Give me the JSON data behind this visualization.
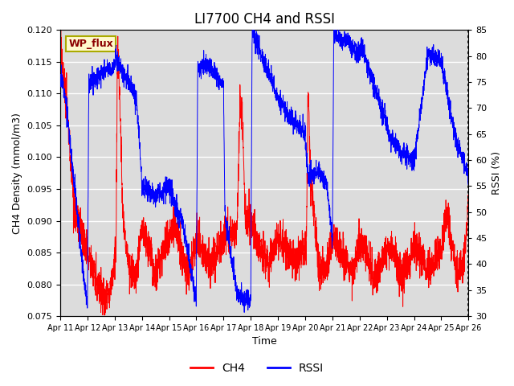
{
  "title": "LI7700 CH4 and RSSI",
  "xlabel": "Time",
  "ylabel_left": "CH4 Density (mmol/m3)",
  "ylabel_right": "RSSI (%)",
  "annotation": "WP_flux",
  "ylim_left": [
    0.075,
    0.12
  ],
  "ylim_right": [
    30,
    85
  ],
  "yticks_left": [
    0.075,
    0.08,
    0.085,
    0.09,
    0.095,
    0.1,
    0.105,
    0.11,
    0.115,
    0.12
  ],
  "yticks_right": [
    30,
    35,
    40,
    45,
    50,
    55,
    60,
    65,
    70,
    75,
    80,
    85
  ],
  "ch4_color": "#FF0000",
  "rssi_color": "#0000FF",
  "background_color": "#DCDCDC",
  "grid_color": "#FFFFFF",
  "title_fontsize": 12,
  "label_fontsize": 9,
  "tick_fontsize": 8,
  "legend_fontsize": 10,
  "n_days": 15,
  "xtick_labels": [
    "Apr 11",
    "Apr 12",
    "Apr 13",
    "Apr 14",
    "Apr 15",
    "Apr 16",
    "Apr 17",
    "Apr 18",
    "Apr 19",
    "Apr 20",
    "Apr 21",
    "Apr 22",
    "Apr 23",
    "Apr 24",
    "Apr 25",
    "Apr 26"
  ],
  "rssi_keypoints_t": [
    0,
    0.15,
    0.9,
    1.0,
    1.05,
    2.0,
    2.05,
    2.1,
    2.8,
    3.0,
    3.05,
    3.5,
    3.8,
    4.0,
    4.3,
    4.5,
    5.0,
    5.05,
    5.5,
    5.8,
    6.0,
    6.05,
    6.1,
    6.5,
    7.0,
    7.05,
    7.1,
    8.0,
    8.5,
    9.0,
    9.05,
    9.1,
    9.5,
    9.8,
    10.0,
    10.05,
    10.5,
    11.0,
    11.05,
    11.1,
    11.5,
    12.0,
    12.05,
    12.3,
    12.5,
    13.0,
    13.5,
    14.0,
    14.5,
    15.0
  ],
  "rssi_keypoints_v": [
    76,
    74,
    36,
    33,
    75,
    78,
    80,
    79,
    72,
    56,
    55,
    53,
    54,
    55,
    50,
    48,
    33,
    78,
    78,
    76,
    74,
    50,
    48,
    34,
    33,
    85,
    84,
    72,
    68,
    65,
    60,
    57,
    58,
    55,
    45,
    84,
    83,
    80,
    82,
    81,
    75,
    67,
    65,
    63,
    62,
    60,
    80,
    79,
    65,
    57
  ],
  "ch4_keypoints_t": [
    0,
    0.05,
    0.1,
    0.2,
    0.5,
    0.8,
    1.0,
    1.1,
    1.2,
    1.5,
    1.8,
    2.0,
    2.05,
    2.1,
    2.15,
    2.3,
    2.5,
    2.8,
    3.0,
    3.2,
    3.5,
    3.8,
    4.0,
    4.2,
    4.5,
    4.8,
    5.0,
    5.2,
    5.5,
    5.8,
    6.0,
    6.3,
    6.5,
    6.6,
    6.7,
    6.8,
    7.0,
    7.2,
    7.5,
    7.8,
    8.0,
    8.2,
    8.5,
    8.8,
    9.0,
    9.05,
    9.1,
    9.2,
    9.5,
    9.8,
    10.0,
    10.2,
    10.5,
    10.8,
    11.0,
    11.2,
    11.5,
    11.8,
    12.0,
    12.2,
    12.5,
    12.8,
    13.0,
    13.2,
    13.5,
    13.8,
    14.0,
    14.2,
    14.5,
    14.8,
    15.0
  ],
  "ch4_keypoints_v": [
    0.115,
    0.114,
    0.112,
    0.108,
    0.095,
    0.088,
    0.083,
    0.082,
    0.081,
    0.08,
    0.079,
    0.082,
    0.083,
    0.115,
    0.113,
    0.09,
    0.085,
    0.082,
    0.087,
    0.085,
    0.083,
    0.086,
    0.085,
    0.088,
    0.086,
    0.083,
    0.086,
    0.084,
    0.085,
    0.086,
    0.085,
    0.087,
    0.091,
    0.11,
    0.108,
    0.09,
    0.088,
    0.085,
    0.086,
    0.085,
    0.086,
    0.085,
    0.086,
    0.085,
    0.084,
    0.085,
    0.11,
    0.095,
    0.085,
    0.083,
    0.086,
    0.084,
    0.085,
    0.083,
    0.085,
    0.084,
    0.083,
    0.084,
    0.083,
    0.085,
    0.083,
    0.084,
    0.085,
    0.083,
    0.084,
    0.085,
    0.084,
    0.09,
    0.085,
    0.083,
    0.09
  ],
  "seed": 12
}
